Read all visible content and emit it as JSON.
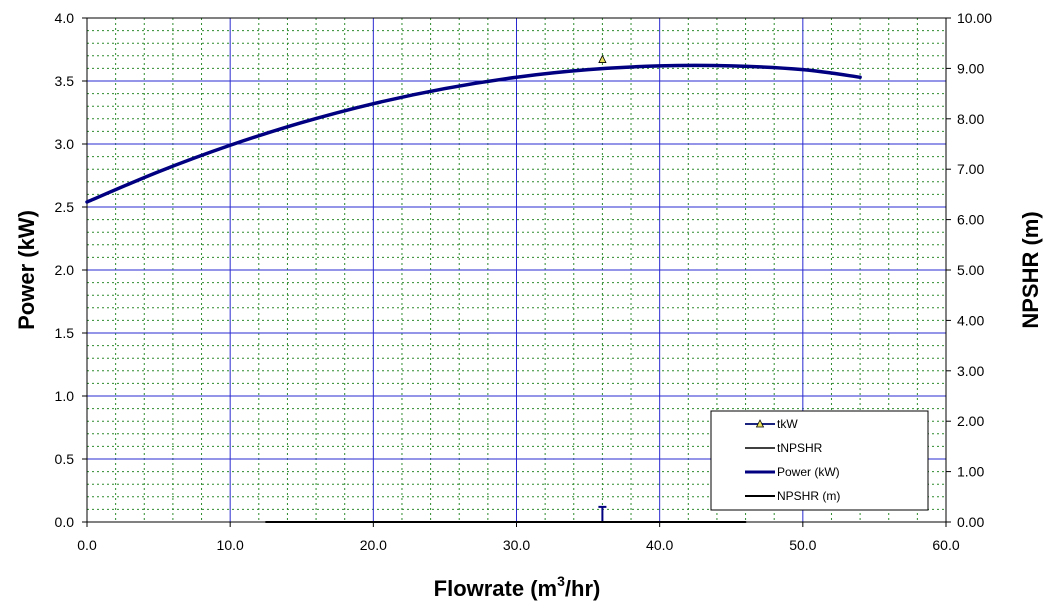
{
  "chart_data": {
    "type": "line",
    "xlabel": "Flowrate (m³/hr)",
    "xlabel_parts": {
      "main": "Flowrate (m",
      "sup": "3",
      "tail": "/hr)"
    },
    "ylabel_left": "Power (kW)",
    "ylabel_right": "NPSHR (m)",
    "xlim": [
      0,
      60
    ],
    "ylim_left": [
      0,
      4.0
    ],
    "ylim_right": [
      0,
      10.0
    ],
    "x_ticks": [
      "0.0",
      "10.0",
      "20.0",
      "30.0",
      "40.0",
      "50.0",
      "60.0"
    ],
    "y_left_ticks": [
      "0.0",
      "0.5",
      "1.0",
      "1.5",
      "2.0",
      "2.5",
      "3.0",
      "3.5",
      "4.0"
    ],
    "y_right_ticks": [
      "0.00",
      "1.00",
      "2.00",
      "3.00",
      "4.00",
      "5.00",
      "6.00",
      "7.00",
      "8.00",
      "9.00",
      "10.00"
    ],
    "grid": {
      "major": true,
      "minor": true,
      "major_color": "#2a2ad0",
      "minor_color": "#2e8b2e"
    },
    "legend_position": "bottom-right",
    "series": [
      {
        "name": "tkW",
        "axis": "left",
        "kind": "marker",
        "marker": "triangle",
        "color": "#1a237e",
        "marker_fill": "#e8e060",
        "points": [
          [
            36.0,
            3.67
          ]
        ]
      },
      {
        "name": "tNPSHR",
        "axis": "right",
        "kind": "errorbar",
        "color": "#000080",
        "points": [
          [
            36.0,
            0.0,
            0.3
          ]
        ]
      },
      {
        "name": "Power (kW)",
        "axis": "left",
        "kind": "line",
        "color": "#000080",
        "width": 3.5,
        "x": [
          0,
          5,
          10,
          15,
          20,
          25,
          30,
          35,
          40,
          45,
          50,
          54
        ],
        "y": [
          2.54,
          2.78,
          2.99,
          3.17,
          3.32,
          3.44,
          3.53,
          3.59,
          3.62,
          3.62,
          3.59,
          3.53
        ]
      },
      {
        "name": "NPSHR (m)",
        "axis": "right",
        "kind": "line",
        "color": "#000000",
        "width": 2,
        "x": [
          12.5,
          46.0
        ],
        "y": [
          0.0,
          0.0
        ]
      }
    ]
  }
}
